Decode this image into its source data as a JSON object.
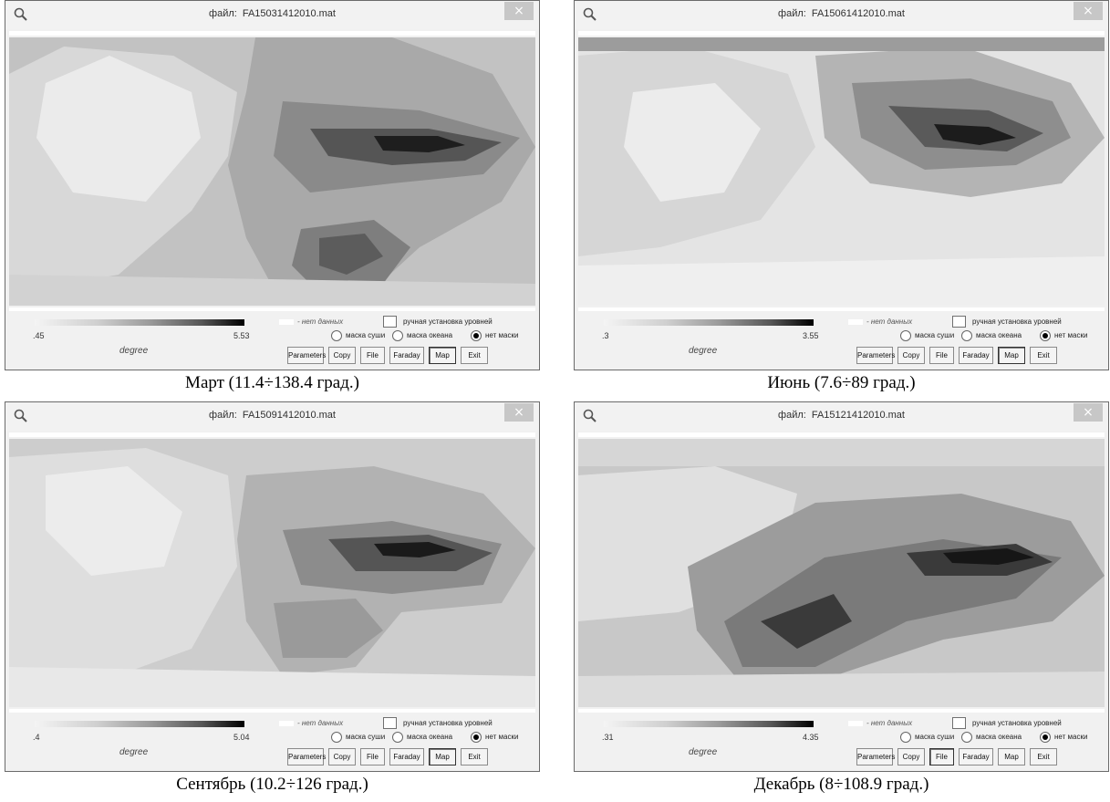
{
  "panels": [
    {
      "title_label": "файл:",
      "file": "FA15031412010.mat",
      "scale_min": ".45",
      "scale_max": "5.53",
      "caption": "Март (11.4÷138.4 град.)",
      "selected_button": "Map"
    },
    {
      "title_label": "файл:",
      "file": "FA15061412010.mat",
      "scale_min": ".3",
      "scale_max": "3.55",
      "caption": "Июнь (7.6÷89 град.)",
      "selected_button": "Map"
    },
    {
      "title_label": "файл:",
      "file": "FA15091412010.mat",
      "scale_min": ".4",
      "scale_max": "5.04",
      "caption": "Сентябрь (10.2÷126 град.)",
      "selected_button": "Map"
    },
    {
      "title_label": "файл:",
      "file": "FA15121412010.mat",
      "scale_min": ".31",
      "scale_max": "4.35",
      "caption": "Декабрь (8÷108.9 град.)",
      "selected_button": "File"
    }
  ],
  "common": {
    "close_glyph": "×",
    "degree_label": "degree",
    "no_data_label": "- нет данных",
    "manual_levels_label": "ручная установка уровней",
    "radio_land_mask": "маска суши",
    "radio_ocean_mask": "маска океана",
    "radio_no_mask": "нет маски",
    "selected_radio": "нет маски",
    "buttons": [
      "Parameters",
      "Copy",
      "File",
      "Faraday",
      "Map",
      "Exit"
    ]
  },
  "icons": {
    "zoom": "magnifier-icon",
    "close": "close-icon"
  },
  "colors": {
    "window_bg": "#f1f1f1",
    "close_button": "#c7c7c7",
    "caption_text": "#000000"
  }
}
